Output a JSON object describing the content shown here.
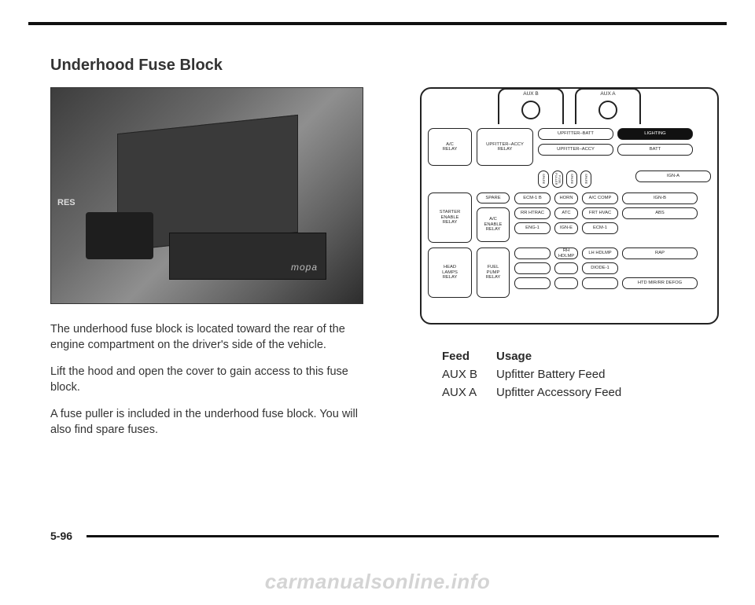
{
  "title": "Underhood Fuse Block",
  "photo": {
    "battery_text": "mopa",
    "side_label": "RES"
  },
  "paragraphs": {
    "p1": "The underhood fuse block is located toward the rear of the engine compartment on the driver's side of the vehicle.",
    "p2": "Lift the hood and open the cover to gain access to this fuse block.",
    "p3": "A fuse puller is included in the underhood fuse block. You will also find spare fuses."
  },
  "diagram": {
    "aux_b": "AUX B",
    "aux_a": "AUX A",
    "relays": {
      "ac": "A/C\nRELAY",
      "starter": "STARTER\nENABLE\nRELAY",
      "head": "HEAD\nLAMPS\nRELAY",
      "upfitter": "UPFITTER–ACCY\nRELAY",
      "ac_enable": "A/C\nENABLE\nRELAY",
      "fuel": "FUEL\nPUMP\nRELAY"
    },
    "top_wide": {
      "upfitter_batt": "UPFITTER–BATT",
      "lighting": "LIGHTING",
      "upfitter_accy": "UPFITTER–ACCY",
      "batt": "BATT",
      "ign_a": "IGN-A",
      "ign_b": "IGN-B",
      "abs": "ABS",
      "rap": "RAP",
      "htd": "HTD MIR/RR DEFOG"
    },
    "tiny_labels": {
      "t1": "SPARE",
      "t2": "FUSE PULLER",
      "t3": "SPARE",
      "t4": "SPARE"
    },
    "spare": "SPARE",
    "small": {
      "ecm1b": "ECM-1 B",
      "horn": "HORN",
      "accomp": "A/C COMP",
      "rrhtrac": "RR HTRAC",
      "atc": "ATC",
      "frthvac": "FRT HVAC",
      "eng1": "ENG-1",
      "ign_e": "IGN-E",
      "ecm1": "ECM-1",
      "blank1": "",
      "rhhdmp": "RH HDLMP",
      "lhhdmp": "LH HDLMP",
      "blank2": "",
      "blank3": "",
      "diode": "DIODE-1",
      "blank4": "",
      "blank5": "",
      "blank6": ""
    }
  },
  "feed_table": {
    "h1": "Feed",
    "h2": "Usage",
    "r1c1": "AUX B",
    "r1c2": "Upfitter Battery Feed",
    "r2c1": "AUX A",
    "r2c2": "Upfitter Accessory Feed"
  },
  "page_number": "5-96",
  "watermark": "carmanualsonline.info"
}
